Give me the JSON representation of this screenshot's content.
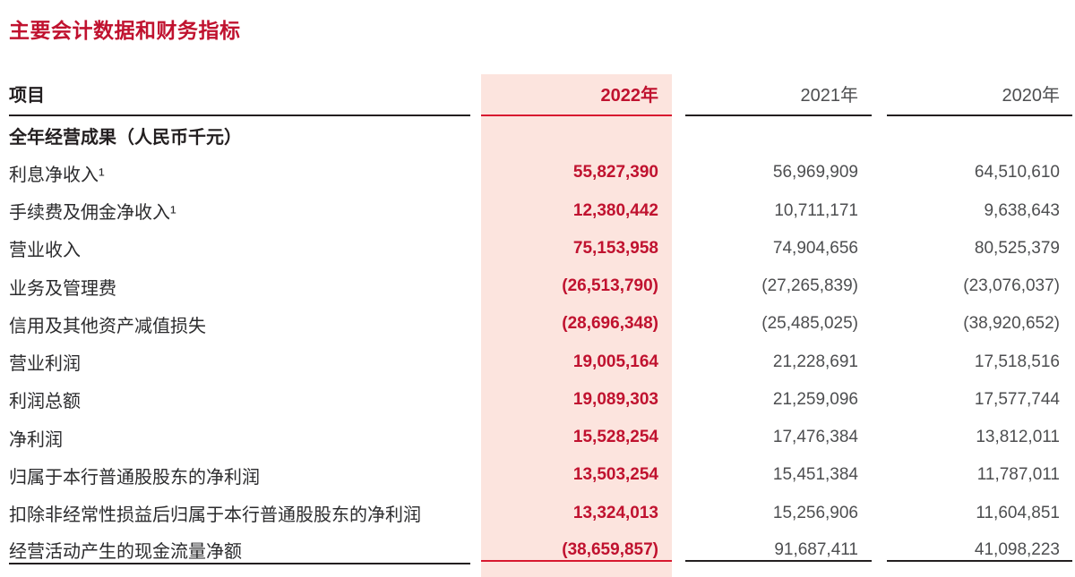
{
  "page": {
    "title": "主要会计数据和财务指标"
  },
  "table": {
    "columns": [
      "项目",
      "2022年",
      "2021年",
      "2020年"
    ],
    "section_header": "全年经营成果（人民币千元）",
    "rows": [
      {
        "label": "利息净收入¹",
        "y2022": "55,827,390",
        "y2021": "56,969,909",
        "y2020": "64,510,610"
      },
      {
        "label": "手续费及佣金净收入¹",
        "y2022": "12,380,442",
        "y2021": "10,711,171",
        "y2020": "9,638,643"
      },
      {
        "label": "营业收入",
        "y2022": "75,153,958",
        "y2021": "74,904,656",
        "y2020": "80,525,379"
      },
      {
        "label": "业务及管理费",
        "y2022": "(26,513,790)",
        "y2021": "(27,265,839)",
        "y2020": "(23,076,037)"
      },
      {
        "label": "信用及其他资产减值损失",
        "y2022": "(28,696,348)",
        "y2021": "(25,485,025)",
        "y2020": "(38,920,652)"
      },
      {
        "label": "营业利润",
        "y2022": "19,005,164",
        "y2021": "21,228,691",
        "y2020": "17,518,516"
      },
      {
        "label": "利润总额",
        "y2022": "19,089,303",
        "y2021": "21,259,096",
        "y2020": "17,577,744"
      },
      {
        "label": "净利润",
        "y2022": "15,528,254",
        "y2021": "17,476,384",
        "y2020": "13,812,011"
      },
      {
        "label": "归属于本行普通股股东的净利润",
        "y2022": "13,503,254",
        "y2021": "15,451,384",
        "y2020": "11,787,011"
      },
      {
        "label": "扣除非经常性损益后归属于本行普通股股东的净利润",
        "y2022": "13,324,013",
        "y2021": "15,256,906",
        "y2020": "11,604,851"
      },
      {
        "label": "经营活动产生的现金流量净额",
        "y2022": "(38,659,857)",
        "y2021": "91,687,411",
        "y2020": "41,098,223"
      }
    ]
  },
  "colors": {
    "accent_red": "#c0122f",
    "accent_red_line": "#d8182f",
    "highlight_bg": "#fce4de",
    "line_dark": "#231f20",
    "text_dark": "#2b2b2d",
    "value_gray": "#4d4e50",
    "header_gray": "#515254"
  }
}
